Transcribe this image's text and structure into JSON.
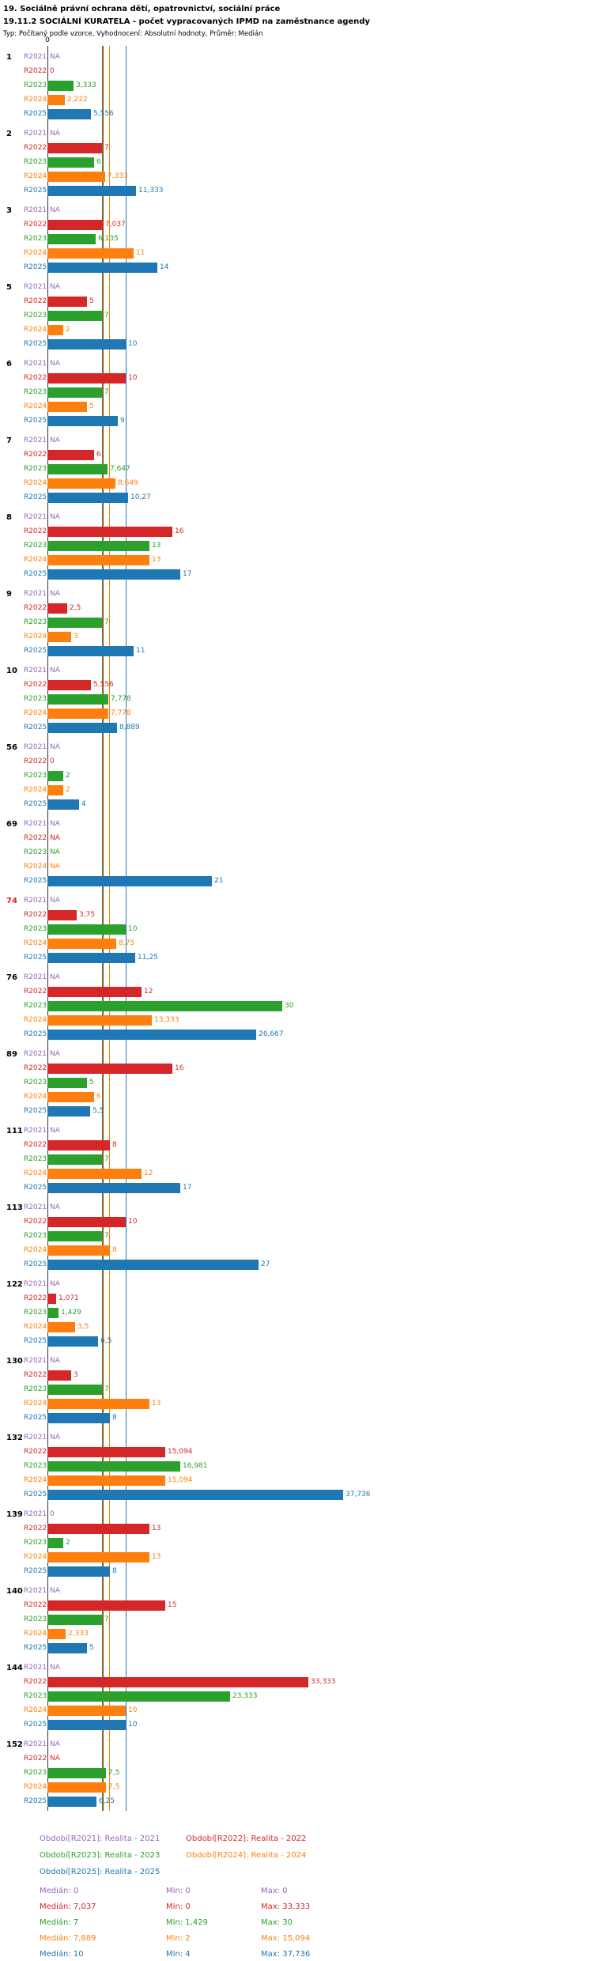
{
  "header": {
    "title1": "19. Sociálně právní ochrana dětí, opatrovnictví, sociální práce",
    "title2": "19.11.2 SOCIÁLNÍ KURATELA - počet vypracovaných IPMD na zaměstnance agendy",
    "meta": "Typ: Počítaný podle vzorce, Vyhodnocení: Absolutní hodnoty, Průměr: Medián"
  },
  "axis": {
    "zero_label": "0"
  },
  "chart_data": {
    "type": "bar",
    "orientation": "horizontal",
    "title": "19.11.2 SOCIÁLNÍ KURATELA - počet vypracovaných IPMD na zaměstnance agendy",
    "xlim": [
      0,
      40
    ],
    "na_text": "NA",
    "categories": [
      "1",
      "2",
      "3",
      "5",
      "6",
      "7",
      "8",
      "9",
      "10",
      "56",
      "69",
      "74",
      "76",
      "89",
      "111",
      "113",
      "122",
      "130",
      "132",
      "139",
      "140",
      "144",
      "152"
    ],
    "highlighted_categories": [
      "74"
    ],
    "highlight_color": "#d62728",
    "series": [
      {
        "name": "R2021",
        "color": "#9467bd",
        "median": 0,
        "values": [
          null,
          null,
          null,
          null,
          null,
          null,
          null,
          null,
          null,
          null,
          null,
          null,
          null,
          null,
          null,
          null,
          null,
          null,
          null,
          0,
          null,
          null,
          null
        ],
        "labels": [
          "NA",
          "NA",
          "NA",
          "NA",
          "NA",
          "NA",
          "NA",
          "NA",
          "NA",
          "NA",
          "NA",
          "NA",
          "NA",
          "NA",
          "NA",
          "NA",
          "NA",
          "NA",
          "NA",
          "0",
          "NA",
          "NA",
          "NA"
        ]
      },
      {
        "name": "R2022",
        "color": "#d62728",
        "median": 7.037,
        "values": [
          0,
          7,
          7.037,
          5,
          10,
          6,
          16,
          2.5,
          5.556,
          0,
          null,
          3.75,
          12,
          16,
          8,
          10,
          1.071,
          3,
          15.094,
          13,
          15,
          33.333,
          null
        ],
        "labels": [
          "0",
          "7",
          "7,037",
          "5",
          "10",
          "6",
          "16",
          "2,5",
          "5,556",
          "0",
          "NA",
          "3,75",
          "12",
          "16",
          "8",
          "10",
          "1,071",
          "3",
          "15,094",
          "13",
          "15",
          "33,333",
          "NA"
        ]
      },
      {
        "name": "R2023",
        "color": "#2ca02c",
        "median": 7,
        "values": [
          3.333,
          6,
          6.135,
          7,
          7,
          7.647,
          13,
          7,
          7.778,
          2,
          null,
          10,
          30,
          5,
          7,
          7,
          1.429,
          7,
          16.981,
          2,
          7,
          23.333,
          7.5
        ],
        "labels": [
          "3,333",
          "6",
          "6,135",
          "7",
          "7",
          "7,647",
          "13",
          "7",
          "7,778",
          "2",
          "NA",
          "10",
          "30",
          "5",
          "7",
          "7",
          "1,429",
          "7",
          "16,981",
          "2",
          "7",
          "23,333",
          "7,5"
        ]
      },
      {
        "name": "R2024",
        "color": "#ff7f0e",
        "median": 7.889,
        "values": [
          2.222,
          7.333,
          11,
          2,
          5,
          8.649,
          13,
          3,
          7.778,
          2,
          null,
          8.75,
          13.333,
          6,
          12,
          8,
          3.5,
          13,
          15.094,
          13,
          2.333,
          10,
          7.5
        ],
        "labels": [
          "2,222",
          "7,333",
          "11",
          "2",
          "5",
          "8,649",
          "13",
          "3",
          "7,778",
          "2",
          "NA",
          "8,75",
          "13,333",
          "6",
          "12",
          "8",
          "3,5",
          "13",
          "15,094",
          "13",
          "2,333",
          "10",
          "7,5"
        ]
      },
      {
        "name": "R2025",
        "color": "#1f77b4",
        "median": 10,
        "values": [
          5.556,
          11.333,
          14,
          10,
          9,
          10.27,
          17,
          11,
          8.889,
          4,
          21,
          11.25,
          26.667,
          5.5,
          17,
          27,
          6.5,
          8,
          37.736,
          8,
          5,
          10,
          6.25
        ],
        "labels": [
          "5,556",
          "11,333",
          "14",
          "10",
          "9",
          "10,27",
          "17",
          "11",
          "8,889",
          "4",
          "21",
          "11,25",
          "26,667",
          "5,5",
          "17",
          "27",
          "6,5",
          "8",
          "37,736",
          "8",
          "5",
          "10",
          "6,25"
        ]
      }
    ]
  },
  "legend": {
    "columns": [
      {
        "items": [
          {
            "year": "R2021",
            "color": "#9467bd",
            "text": "Období[R2021]: Realita - 2021"
          },
          {
            "year": "R2023",
            "color": "#2ca02c",
            "text": "Období[R2023]: Realita - 2023"
          },
          {
            "year": "R2025",
            "color": "#1f77b4",
            "text": "Období[R2025]: Realita - 2025"
          }
        ]
      },
      {
        "items": [
          {
            "year": "R2022",
            "color": "#d62728",
            "text": "Období[R2022]: Realita - 2022"
          },
          {
            "year": "R2024",
            "color": "#ff7f0e",
            "text": "Období[R2024]: Realita - 2024"
          }
        ]
      }
    ]
  },
  "stats": {
    "rows": [
      {
        "year": "R2021",
        "color": "#9467bd",
        "median_text": "Medián: 0",
        "min_text": "Min: 0",
        "max_text": "Max: 0"
      },
      {
        "year": "R2022",
        "color": "#d62728",
        "median_text": "Medián: 7,037",
        "min_text": "Min: 0",
        "max_text": "Max: 33,333"
      },
      {
        "year": "R2023",
        "color": "#2ca02c",
        "median_text": "Medián: 7",
        "min_text": "Min: 1,429",
        "max_text": "Max: 30"
      },
      {
        "year": "R2024",
        "color": "#ff7f0e",
        "median_text": "Medián: 7,889",
        "min_text": "Min: 2",
        "max_text": "Max: 15,094"
      },
      {
        "year": "R2025",
        "color": "#1f77b4",
        "median_text": "Medián: 10",
        "min_text": "Min: 4",
        "max_text": "Max: 37,736"
      }
    ]
  }
}
